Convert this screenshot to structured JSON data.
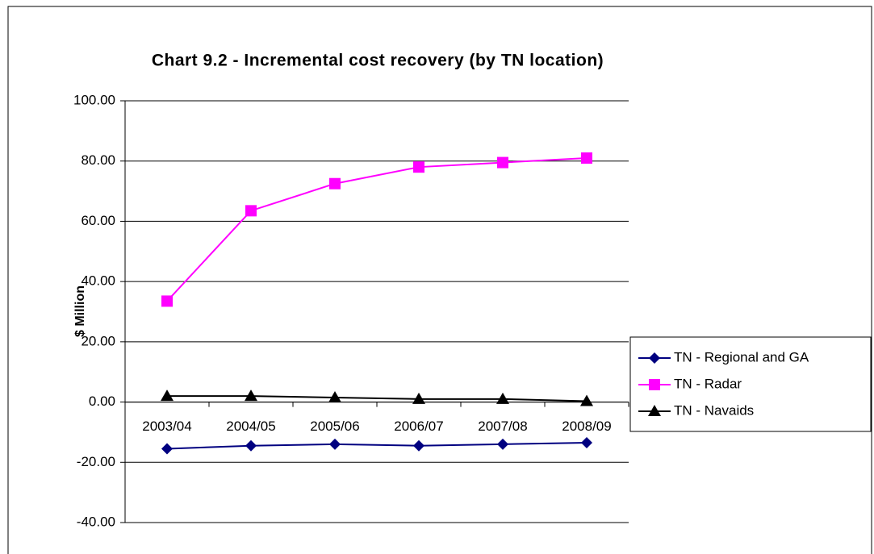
{
  "chart_data": {
    "type": "line",
    "title": "Chart 9.2 - Incremental cost recovery (by TN location)",
    "y_label": "$ Million",
    "categories": [
      "2003/04",
      "2004/05",
      "2005/06",
      "2006/07",
      "2007/08",
      "2008/09"
    ],
    "series": [
      {
        "name": "TN - Regional and GA",
        "color": "#000080",
        "marker": "diamond",
        "values": [
          -15.5,
          -14.5,
          -14,
          -14.5,
          -14,
          -13.5
        ]
      },
      {
        "name": "TN - Radar",
        "color": "#ff00ff",
        "marker": "square",
        "values": [
          33.5,
          63.5,
          72.5,
          78,
          79.5,
          81
        ]
      },
      {
        "name": "TN - Navaids",
        "color": "#000000",
        "marker": "triangle",
        "values": [
          2,
          2,
          1.5,
          1,
          1,
          0.3
        ]
      }
    ],
    "ylim": [
      -40,
      100
    ],
    "yticks": [
      {
        "value": -40,
        "label": "-40.00"
      },
      {
        "value": -20,
        "label": "-20.00"
      },
      {
        "value": 0,
        "label": "0.00"
      },
      {
        "value": 20,
        "label": "20.00"
      },
      {
        "value": 40,
        "label": "40.00"
      },
      {
        "value": 60,
        "label": "60.00"
      },
      {
        "value": 80,
        "label": "80.00"
      },
      {
        "value": 100,
        "label": "100.00"
      }
    ],
    "grid": true,
    "legend": "right"
  }
}
